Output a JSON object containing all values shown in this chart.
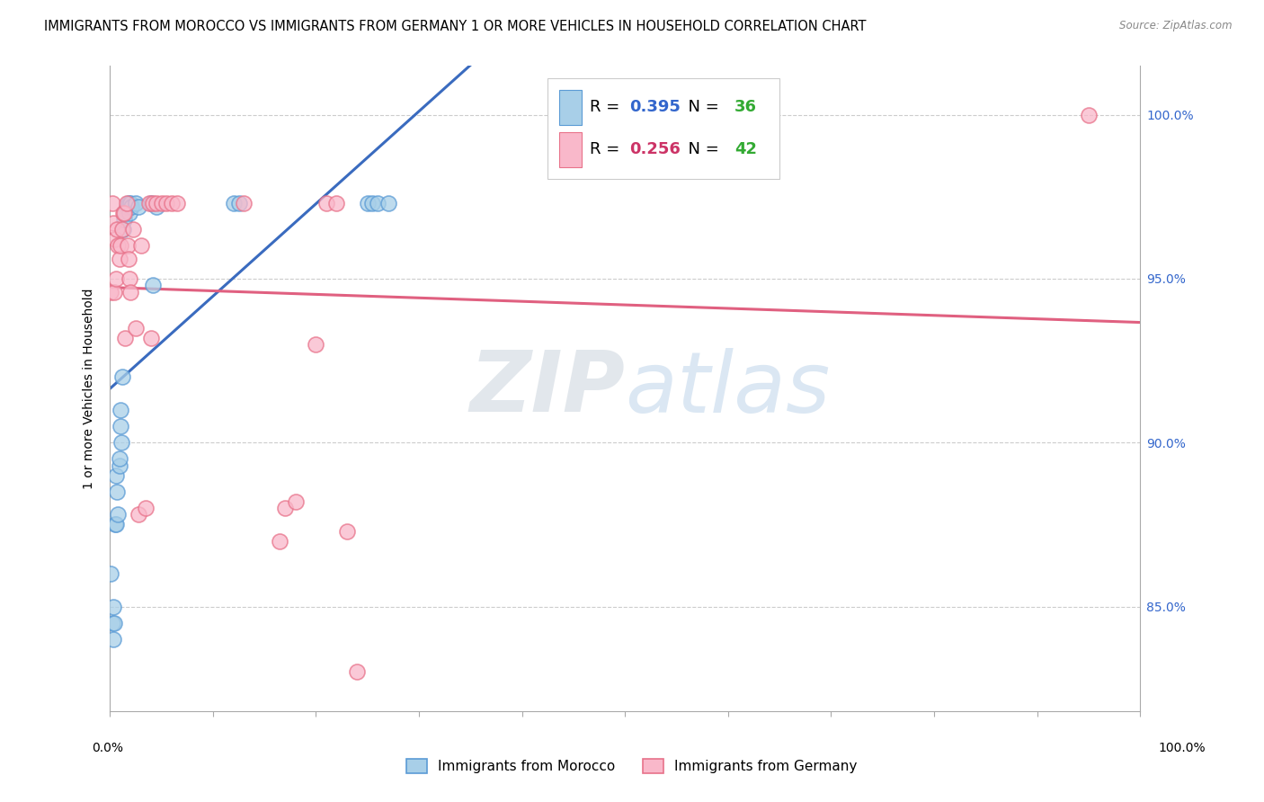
{
  "title": "IMMIGRANTS FROM MOROCCO VS IMMIGRANTS FROM GERMANY 1 OR MORE VEHICLES IN HOUSEHOLD CORRELATION CHART",
  "source": "Source: ZipAtlas.com",
  "ylabel": "1 or more Vehicles in Household",
  "ytick_labels": [
    "85.0%",
    "90.0%",
    "95.0%",
    "100.0%"
  ],
  "ytick_values": [
    0.85,
    0.9,
    0.95,
    1.0
  ],
  "xlim": [
    0.0,
    1.0
  ],
  "ylim": [
    0.818,
    1.015
  ],
  "legend_morocco": "Immigrants from Morocco",
  "legend_germany": "Immigrants from Germany",
  "R_morocco": 0.395,
  "N_morocco": 36,
  "R_germany": 0.256,
  "N_germany": 42,
  "color_morocco": "#a8cfe8",
  "color_germany": "#f9b8ca",
  "edge_color_morocco": "#5b9bd5",
  "edge_color_germany": "#e8728a",
  "line_color_morocco": "#3a6bbf",
  "line_color_germany": "#e06080",
  "R_color_morocco": "#3366cc",
  "R_color_germany": "#cc3366",
  "N_color": "#33aa33",
  "morocco_x": [
    0.001,
    0.002,
    0.003,
    0.003,
    0.004,
    0.005,
    0.006,
    0.006,
    0.007,
    0.008,
    0.009,
    0.009,
    0.01,
    0.01,
    0.011,
    0.012,
    0.013,
    0.014,
    0.015,
    0.016,
    0.017,
    0.018,
    0.019,
    0.02,
    0.021,
    0.025,
    0.028,
    0.04,
    0.042,
    0.045,
    0.12,
    0.125,
    0.25,
    0.255,
    0.26,
    0.27
  ],
  "morocco_y": [
    0.86,
    0.845,
    0.84,
    0.85,
    0.845,
    0.875,
    0.89,
    0.875,
    0.885,
    0.878,
    0.893,
    0.895,
    0.905,
    0.91,
    0.9,
    0.92,
    0.965,
    0.968,
    0.97,
    0.972,
    0.972,
    0.973,
    0.97,
    0.973,
    0.972,
    0.973,
    0.972,
    0.973,
    0.948,
    0.972,
    0.973,
    0.973,
    0.973,
    0.973,
    0.973,
    0.973
  ],
  "germany_x": [
    0.001,
    0.002,
    0.003,
    0.004,
    0.005,
    0.006,
    0.007,
    0.008,
    0.009,
    0.01,
    0.012,
    0.013,
    0.014,
    0.015,
    0.016,
    0.017,
    0.018,
    0.019,
    0.02,
    0.022,
    0.025,
    0.028,
    0.03,
    0.035,
    0.038,
    0.04,
    0.042,
    0.045,
    0.05,
    0.055,
    0.06,
    0.065,
    0.13,
    0.165,
    0.17,
    0.18,
    0.2,
    0.21,
    0.22,
    0.23,
    0.24,
    0.95
  ],
  "germany_y": [
    0.946,
    0.973,
    0.967,
    0.946,
    0.962,
    0.95,
    0.965,
    0.96,
    0.956,
    0.96,
    0.965,
    0.97,
    0.97,
    0.932,
    0.973,
    0.96,
    0.956,
    0.95,
    0.946,
    0.965,
    0.935,
    0.878,
    0.96,
    0.88,
    0.973,
    0.932,
    0.973,
    0.973,
    0.973,
    0.973,
    0.973,
    0.973,
    0.973,
    0.87,
    0.88,
    0.882,
    0.93,
    0.973,
    0.973,
    0.873,
    0.83,
    1.0
  ],
  "watermark_zip": "ZIP",
  "watermark_atlas": "atlas",
  "background_color": "#ffffff",
  "grid_color": "#cccccc",
  "title_fontsize": 10.5,
  "axis_label_fontsize": 10,
  "tick_fontsize": 10,
  "legend_fontsize": 11,
  "annotation_fontsize": 13
}
